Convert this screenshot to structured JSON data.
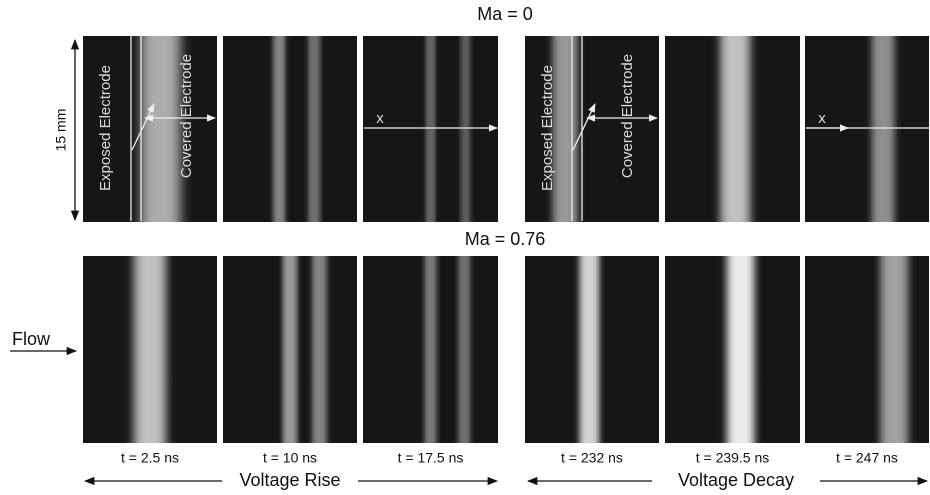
{
  "labels": {
    "top_row": "Ma = 0",
    "bottom_row": "Ma = 0.76",
    "scale": "15 mm",
    "exposed": "Exposed Electrode",
    "covered": "Covered Electrode",
    "x_axis": "x",
    "flow": "Flow"
  },
  "times": [
    "t = 2.5 ns",
    "t = 10 ns",
    "t = 17.5 ns",
    "t = 232 ns",
    "t = 239.5 ns",
    "t = 247 ns"
  ],
  "phases": [
    "Voltage Rise",
    "Voltage Decay"
  ]
}
